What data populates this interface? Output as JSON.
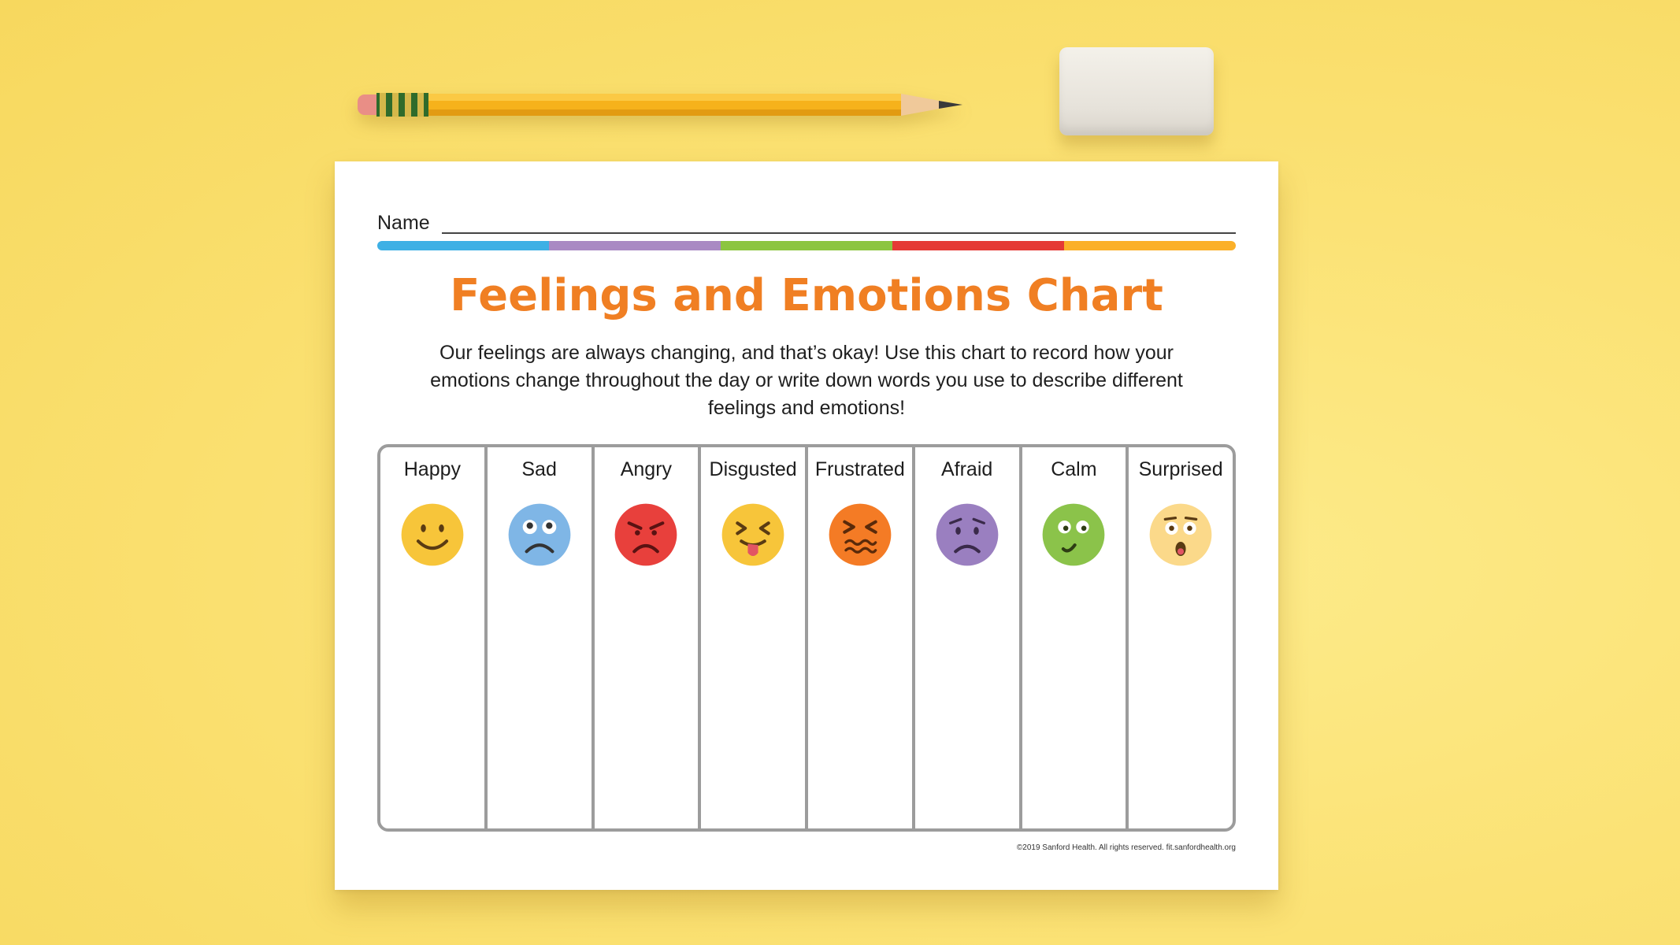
{
  "sheet": {
    "name_label": "Name",
    "title": "Feelings and Emotions Chart",
    "description": "Our feelings are always changing, and that’s okay! Use this chart to record how your emotions change throughout the day or write down words you use to describe different feelings and emotions!",
    "footer": "©2019 Sanford Health. All rights reserved. fit.sanfordhealth.org",
    "bar_colors": [
      "#3eb0e5",
      "#a98ac3",
      "#8cc540",
      "#e53935",
      "#fbb029"
    ],
    "title_color": "#f07f23"
  },
  "emotions": [
    {
      "label": "Happy",
      "icon": "happy-face-icon",
      "color": "#f7c53a"
    },
    {
      "label": "Sad",
      "icon": "sad-face-icon",
      "color": "#7fb6e6"
    },
    {
      "label": "Angry",
      "icon": "angry-face-icon",
      "color": "#e8403c"
    },
    {
      "label": "Disgusted",
      "icon": "disgusted-face-icon",
      "color": "#f7c53a"
    },
    {
      "label": "Frustrated",
      "icon": "frustrated-face-icon",
      "color": "#f47b25"
    },
    {
      "label": "Afraid",
      "icon": "afraid-face-icon",
      "color": "#9a7fc0"
    },
    {
      "label": "Calm",
      "icon": "calm-face-icon",
      "color": "#8bc34a"
    },
    {
      "label": "Surprised",
      "icon": "surprised-face-icon",
      "color": "#fbd98a"
    }
  ]
}
